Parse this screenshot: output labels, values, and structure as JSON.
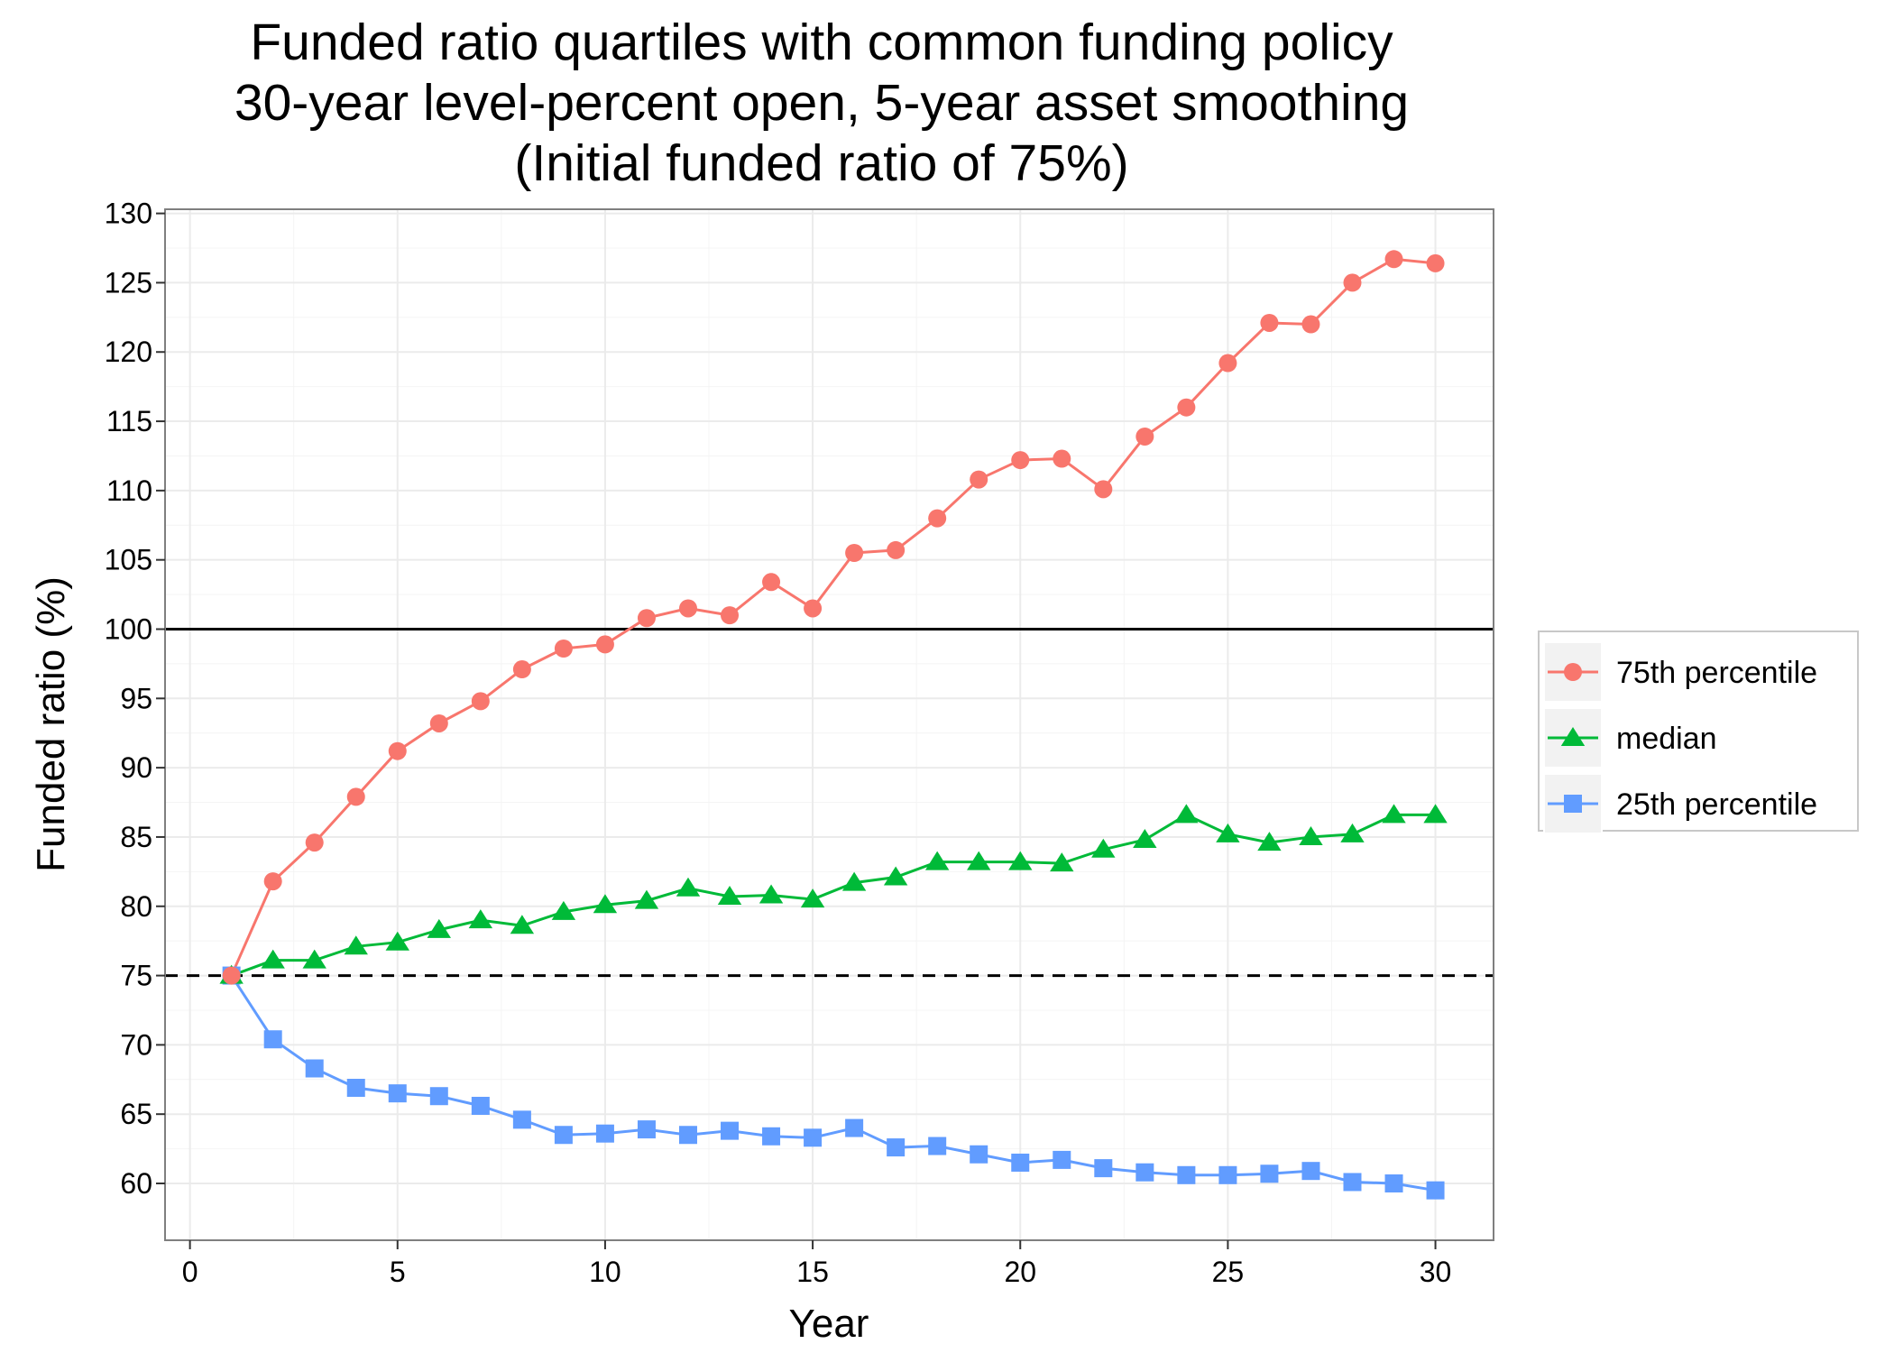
{
  "chart_data": {
    "type": "line",
    "title_lines": [
      "Funded ratio quartiles with common funding policy",
      "30-year level-percent open, 5-year asset smoothing",
      "(Initial funded ratio of 75%)"
    ],
    "xlabel": "Year",
    "ylabel": "Funded ratio (%)",
    "xlim": [
      -0.6,
      31.4
    ],
    "ylim": [
      55.9,
      130.3
    ],
    "xticks": [
      0,
      5,
      10,
      15,
      20,
      25,
      30
    ],
    "yticks": [
      60,
      65,
      70,
      75,
      80,
      85,
      90,
      95,
      100,
      105,
      110,
      115,
      120,
      125,
      130
    ],
    "grid": true,
    "legend_position": "right",
    "reference_lines": [
      {
        "y": 100,
        "style": "solid",
        "color": "#000000"
      },
      {
        "y": 75,
        "style": "dashed",
        "color": "#000000"
      }
    ],
    "x": [
      1,
      2,
      3,
      4,
      5,
      6,
      7,
      8,
      9,
      10,
      11,
      12,
      13,
      14,
      15,
      16,
      17,
      18,
      19,
      20,
      21,
      22,
      23,
      24,
      25,
      26,
      27,
      28,
      29,
      30
    ],
    "series": [
      {
        "name": "75th percentile",
        "color": "#F8766D",
        "marker": "circle",
        "values": [
          75.0,
          81.8,
          84.6,
          87.9,
          91.2,
          93.2,
          94.8,
          97.1,
          98.6,
          98.9,
          100.8,
          101.5,
          101.0,
          103.4,
          101.5,
          105.5,
          105.7,
          108.0,
          110.8,
          112.2,
          112.3,
          110.1,
          113.9,
          116.0,
          119.2,
          122.1,
          122.0,
          125.0,
          126.7,
          126.4
        ]
      },
      {
        "name": "median",
        "color": "#00BA38",
        "marker": "triangle",
        "values": [
          75.0,
          76.1,
          76.1,
          77.1,
          77.4,
          78.3,
          79.0,
          78.6,
          79.6,
          80.1,
          80.4,
          81.3,
          80.7,
          80.8,
          80.5,
          81.7,
          82.1,
          83.2,
          83.2,
          83.2,
          83.1,
          84.1,
          84.8,
          86.6,
          85.2,
          84.6,
          85.0,
          85.2,
          86.6,
          86.6
        ]
      },
      {
        "name": "25th percentile",
        "color": "#619CFF",
        "marker": "square",
        "values": [
          75.0,
          70.4,
          68.3,
          66.9,
          66.5,
          66.3,
          65.6,
          64.6,
          63.5,
          63.6,
          63.9,
          63.5,
          63.8,
          63.4,
          63.3,
          64.0,
          62.6,
          62.7,
          62.1,
          61.5,
          61.7,
          61.1,
          60.8,
          60.6,
          60.6,
          60.7,
          60.9,
          60.1,
          60.0,
          59.5
        ]
      }
    ]
  }
}
